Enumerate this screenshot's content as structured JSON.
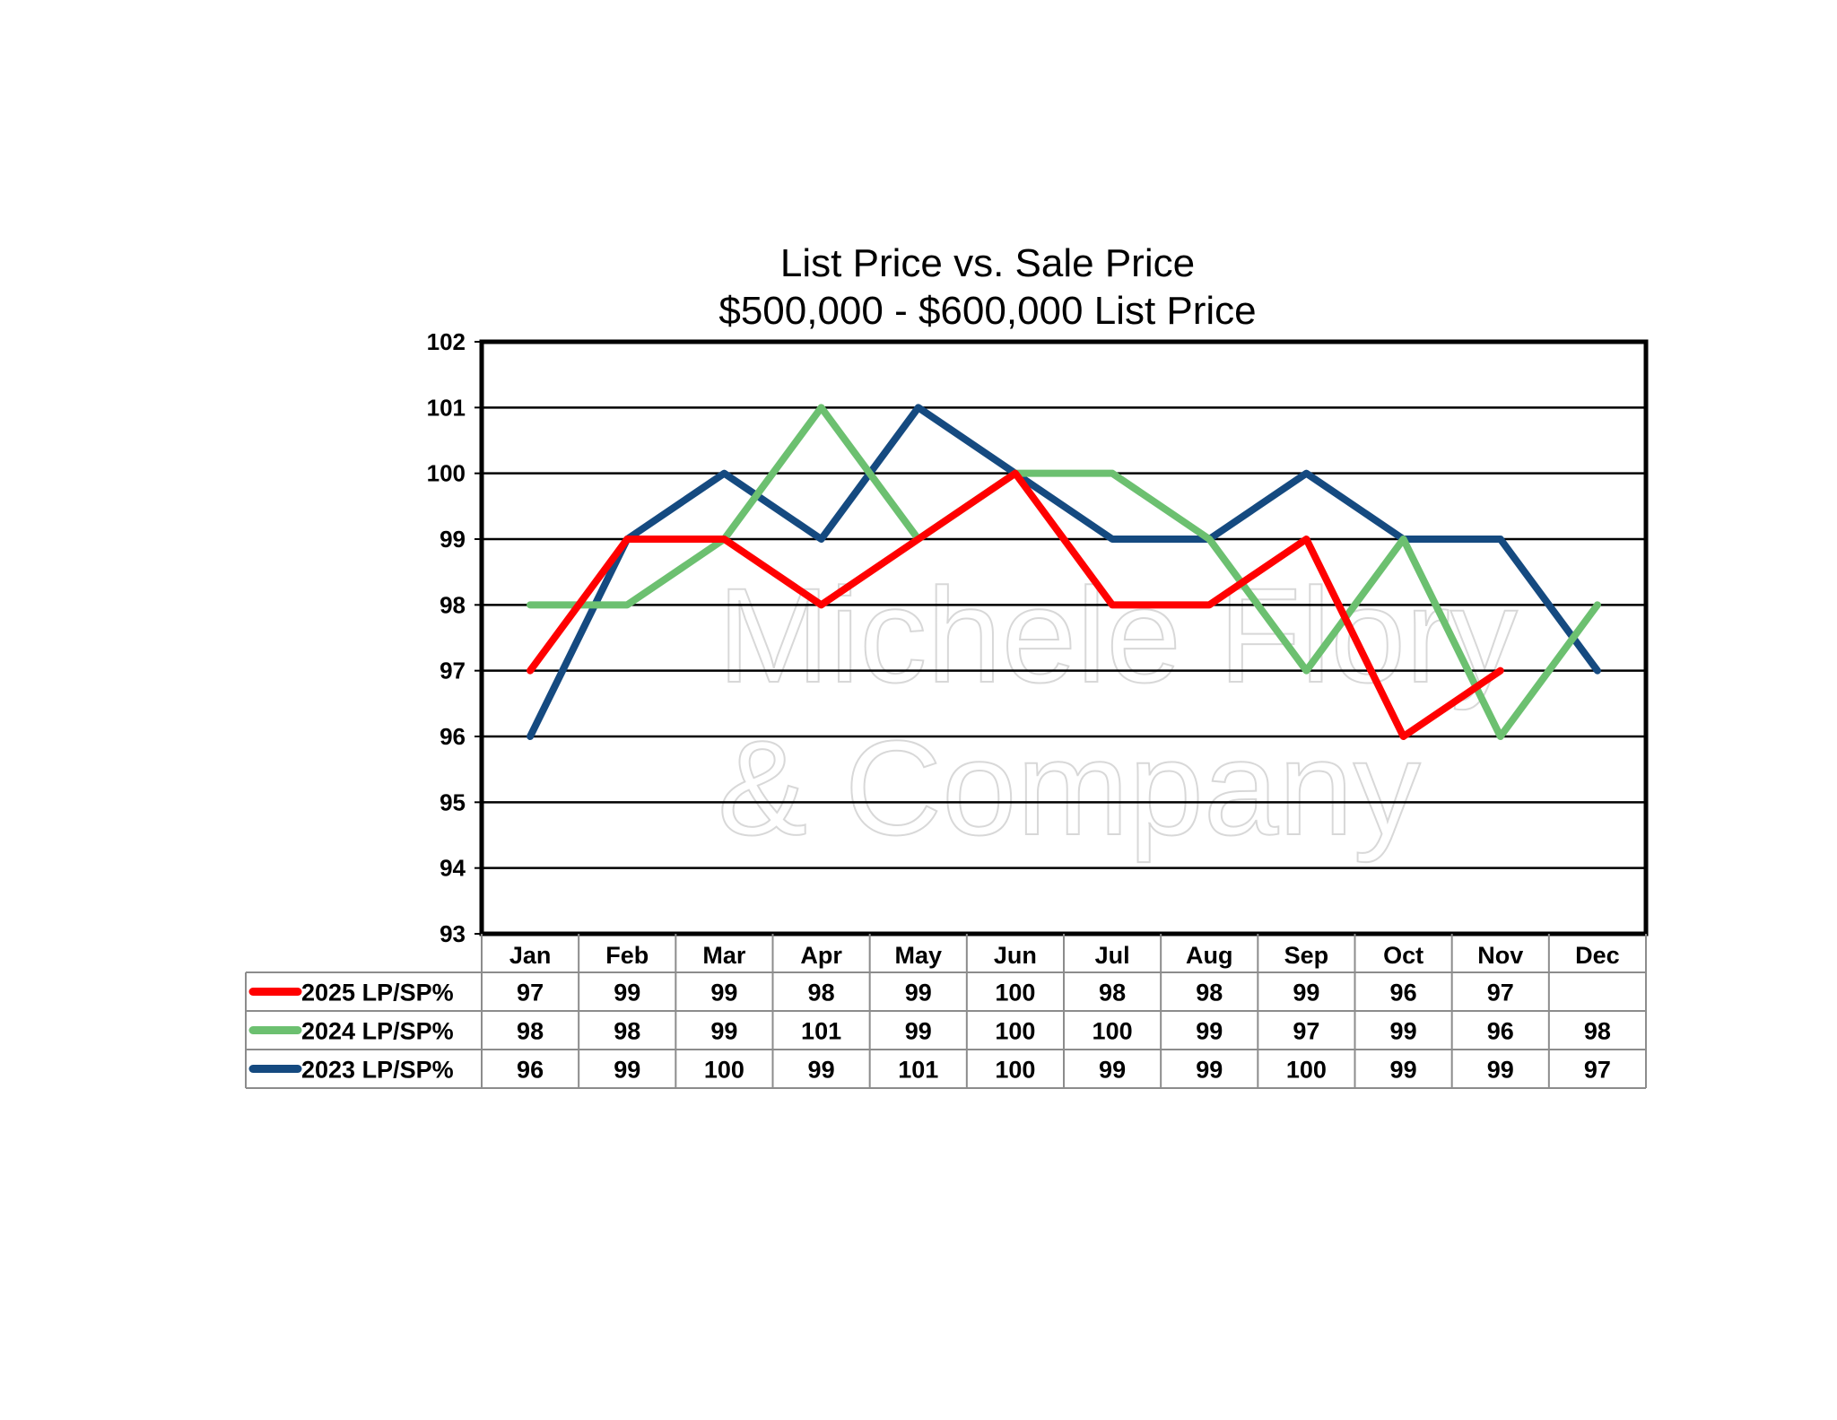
{
  "chart_data": {
    "type": "line",
    "title": "List Price vs. Sale Price",
    "subtitle": "$500,000 - $600,000  List Price",
    "xlabel": "",
    "ylabel": "",
    "ylim": [
      93,
      102
    ],
    "yticks": [
      93,
      94,
      95,
      96,
      97,
      98,
      99,
      100,
      101,
      102
    ],
    "grid": true,
    "legend": "table-left",
    "categories": [
      "Jan",
      "Feb",
      "Mar",
      "Apr",
      "May",
      "Jun",
      "Jul",
      "Aug",
      "Sep",
      "Oct",
      "Nov",
      "Dec"
    ],
    "series": [
      {
        "name": "2025 LP/SP%",
        "color": "#ff0000",
        "values": [
          97,
          99,
          99,
          98,
          99,
          100,
          98,
          98,
          99,
          96,
          97,
          null
        ]
      },
      {
        "name": "2024 LP/SP%",
        "color": "#6cc070",
        "values": [
          98,
          98,
          99,
          101,
          99,
          100,
          100,
          99,
          97,
          99,
          96,
          98
        ]
      },
      {
        "name": "2023 LP/SP%",
        "color": "#154a80",
        "values": [
          96,
          99,
          100,
          99,
          101,
          100,
          99,
          99,
          100,
          99,
          99,
          97
        ]
      }
    ],
    "watermark": [
      "Michele Flory",
      "& Company"
    ]
  }
}
